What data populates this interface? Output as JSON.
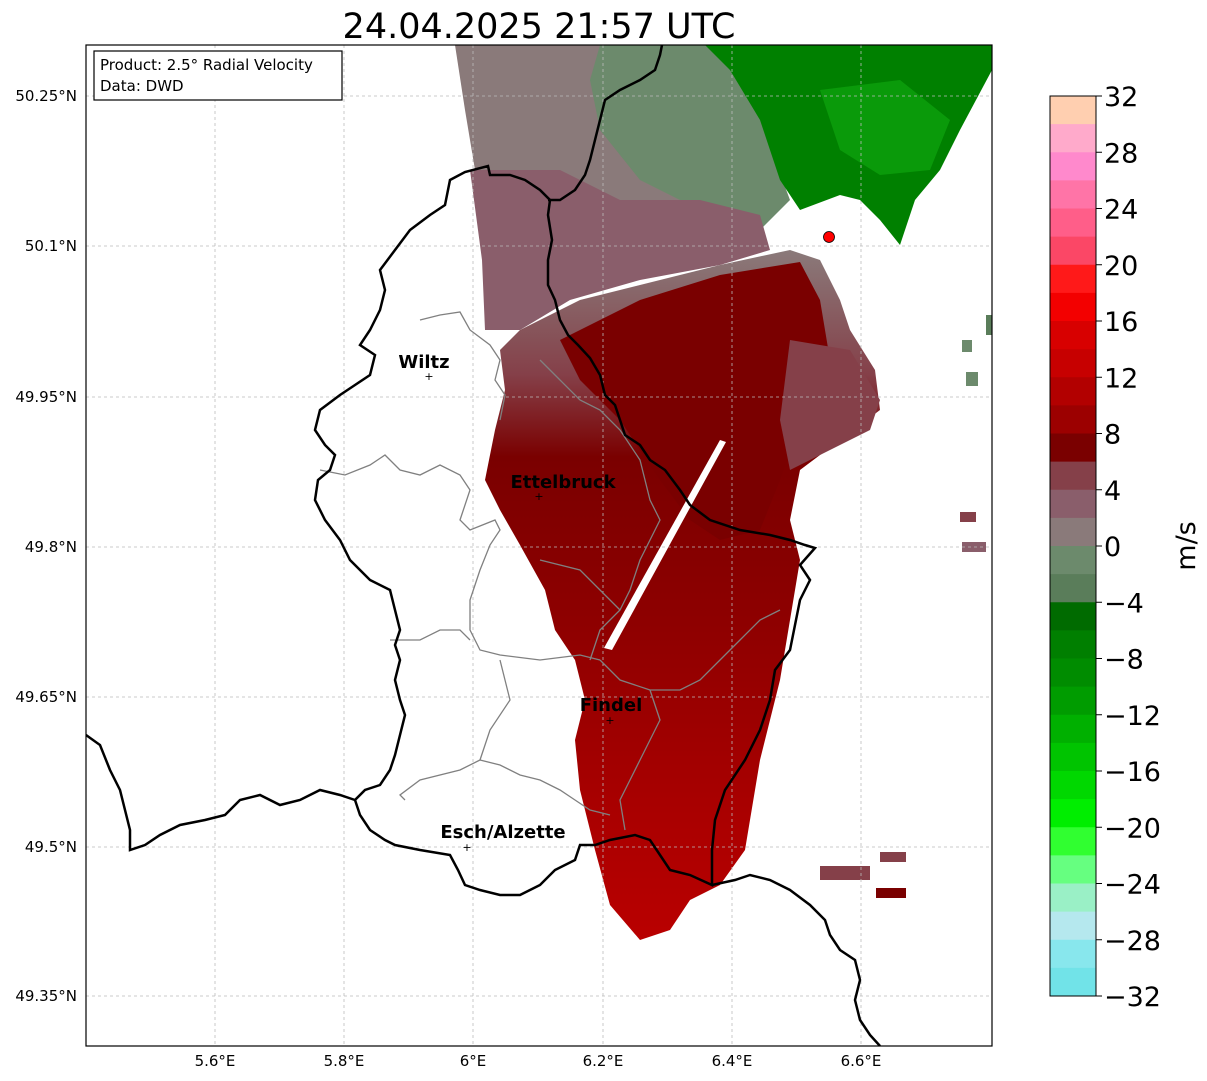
{
  "title": "24.04.2025 21:57 UTC",
  "info_box": {
    "line1": "Product: 2.5° Radial Velocity",
    "line2": "Data: DWD"
  },
  "latitude_labels": [
    "50.25°N",
    "50.1°N",
    "49.95°N",
    "49.8°N",
    "49.65°N",
    "49.5°N",
    "49.35°N"
  ],
  "longitude_labels": [
    "5.6°E",
    "5.8°E",
    "6°E",
    "6.2°E",
    "6.4°E",
    "6.6°E"
  ],
  "cities": [
    {
      "name": "Wiltz"
    },
    {
      "name": "Ettelbruck"
    },
    {
      "name": "Findel"
    },
    {
      "name": "Esch/Alzette"
    }
  ],
  "colorbar": {
    "unit": "m/s",
    "ticks": [
      "32",
      "28",
      "24",
      "20",
      "16",
      "12",
      "8",
      "4",
      "0",
      "−4",
      "−8",
      "−12",
      "−16",
      "−20",
      "−24",
      "−28",
      "−32"
    ],
    "colors_top_to_bottom": [
      "#ffcfb0",
      "#ffaacb",
      "#ff89cc",
      "#ff74a7",
      "#ff5e89",
      "#fb4766",
      "#ff1919",
      "#f30000",
      "#d80000",
      "#c70000",
      "#b20000",
      "#9c0000",
      "#7a0000",
      "#854049",
      "#8a5e6b",
      "#8a7a7a",
      "#6c8a6c",
      "#5a7d5a",
      "#006b00",
      "#007f00",
      "#008c00",
      "#009c00",
      "#00b000",
      "#00c400",
      "#00d800",
      "#00ee00",
      "#30ff30",
      "#66ff80",
      "#9af0c6",
      "#b5e8ee",
      "#88e7ed",
      "#71e3e8"
    ]
  },
  "radar_marker_color": "#ff0000",
  "legend_colors": {
    "receding_strong": "#9c0000",
    "receding_moderate": "#7a0000",
    "near_zero": "#8a5e6b",
    "approaching": "#008000"
  }
}
